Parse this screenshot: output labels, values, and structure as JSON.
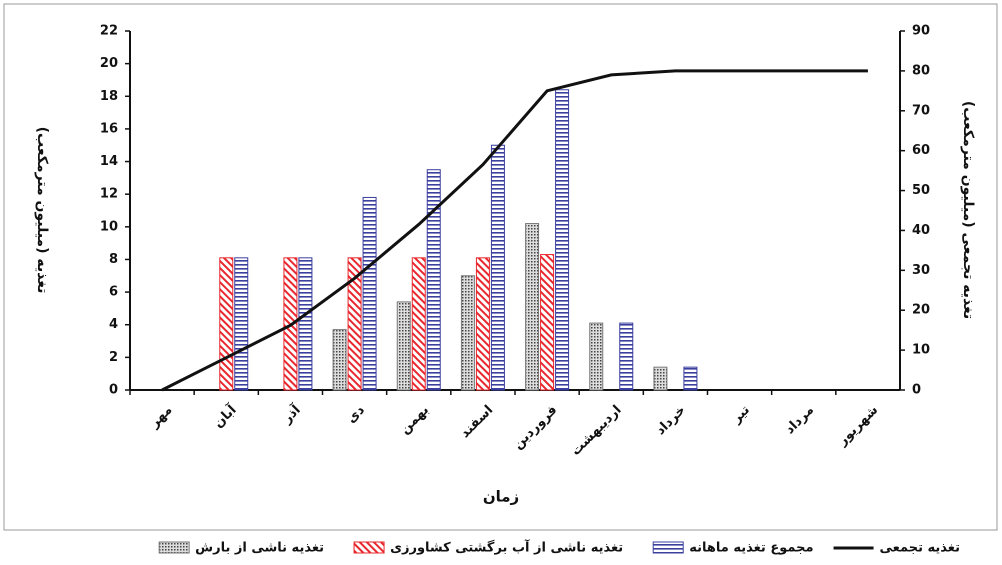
{
  "chart_data": {
    "type": "bar",
    "x_label": "زمان",
    "y_label": "تغذیه (میلیون مترمکعب)",
    "y2_label": "تغذیه تجمعی (میلیون مترمکعب)",
    "categories": [
      "مهر",
      "آبان",
      "آذر",
      "دی",
      "بهمن",
      "اسفند",
      "فروردین",
      "اردیبهشت",
      "خرداد",
      "تیر",
      "مرداد",
      "شهریور"
    ],
    "ylim": [
      0,
      22
    ],
    "yticks": [
      0,
      2,
      4,
      6,
      8,
      10,
      12,
      14,
      16,
      18,
      20,
      22
    ],
    "y2lim": [
      0,
      90
    ],
    "y2ticks": [
      0,
      10,
      20,
      30,
      40,
      50,
      60,
      70,
      80,
      90
    ],
    "series": [
      {
        "name": "تغذیه تجمعی",
        "type": "line",
        "axis": "y2",
        "color": "#111111",
        "values": [
          0,
          8.1,
          16.2,
          28,
          41.5,
          56.5,
          75,
          79,
          80,
          80,
          80,
          80
        ]
      },
      {
        "name": "مجموع تغذیه ماهانه",
        "type": "bar",
        "pattern": "horizontal",
        "color": "#3b3f9e",
        "values": [
          0,
          8.1,
          8.1,
          11.8,
          13.5,
          15.0,
          18.4,
          4.1,
          1.4,
          0,
          0,
          0
        ]
      },
      {
        "name": "تغذیه ناشی از آب برگشتی کشاورزی",
        "type": "bar",
        "pattern": "diagonal",
        "color": "#e8282e",
        "values": [
          0,
          8.1,
          8.1,
          8.1,
          8.1,
          8.1,
          8.3,
          0,
          0,
          0,
          0,
          0
        ]
      },
      {
        "name": "تغذیه ناشی از بارش",
        "type": "bar",
        "pattern": "dots",
        "color": "#777777",
        "values": [
          0,
          0,
          0,
          3.7,
          5.4,
          7.0,
          10.2,
          4.1,
          1.4,
          0,
          0,
          0
        ]
      }
    ]
  }
}
